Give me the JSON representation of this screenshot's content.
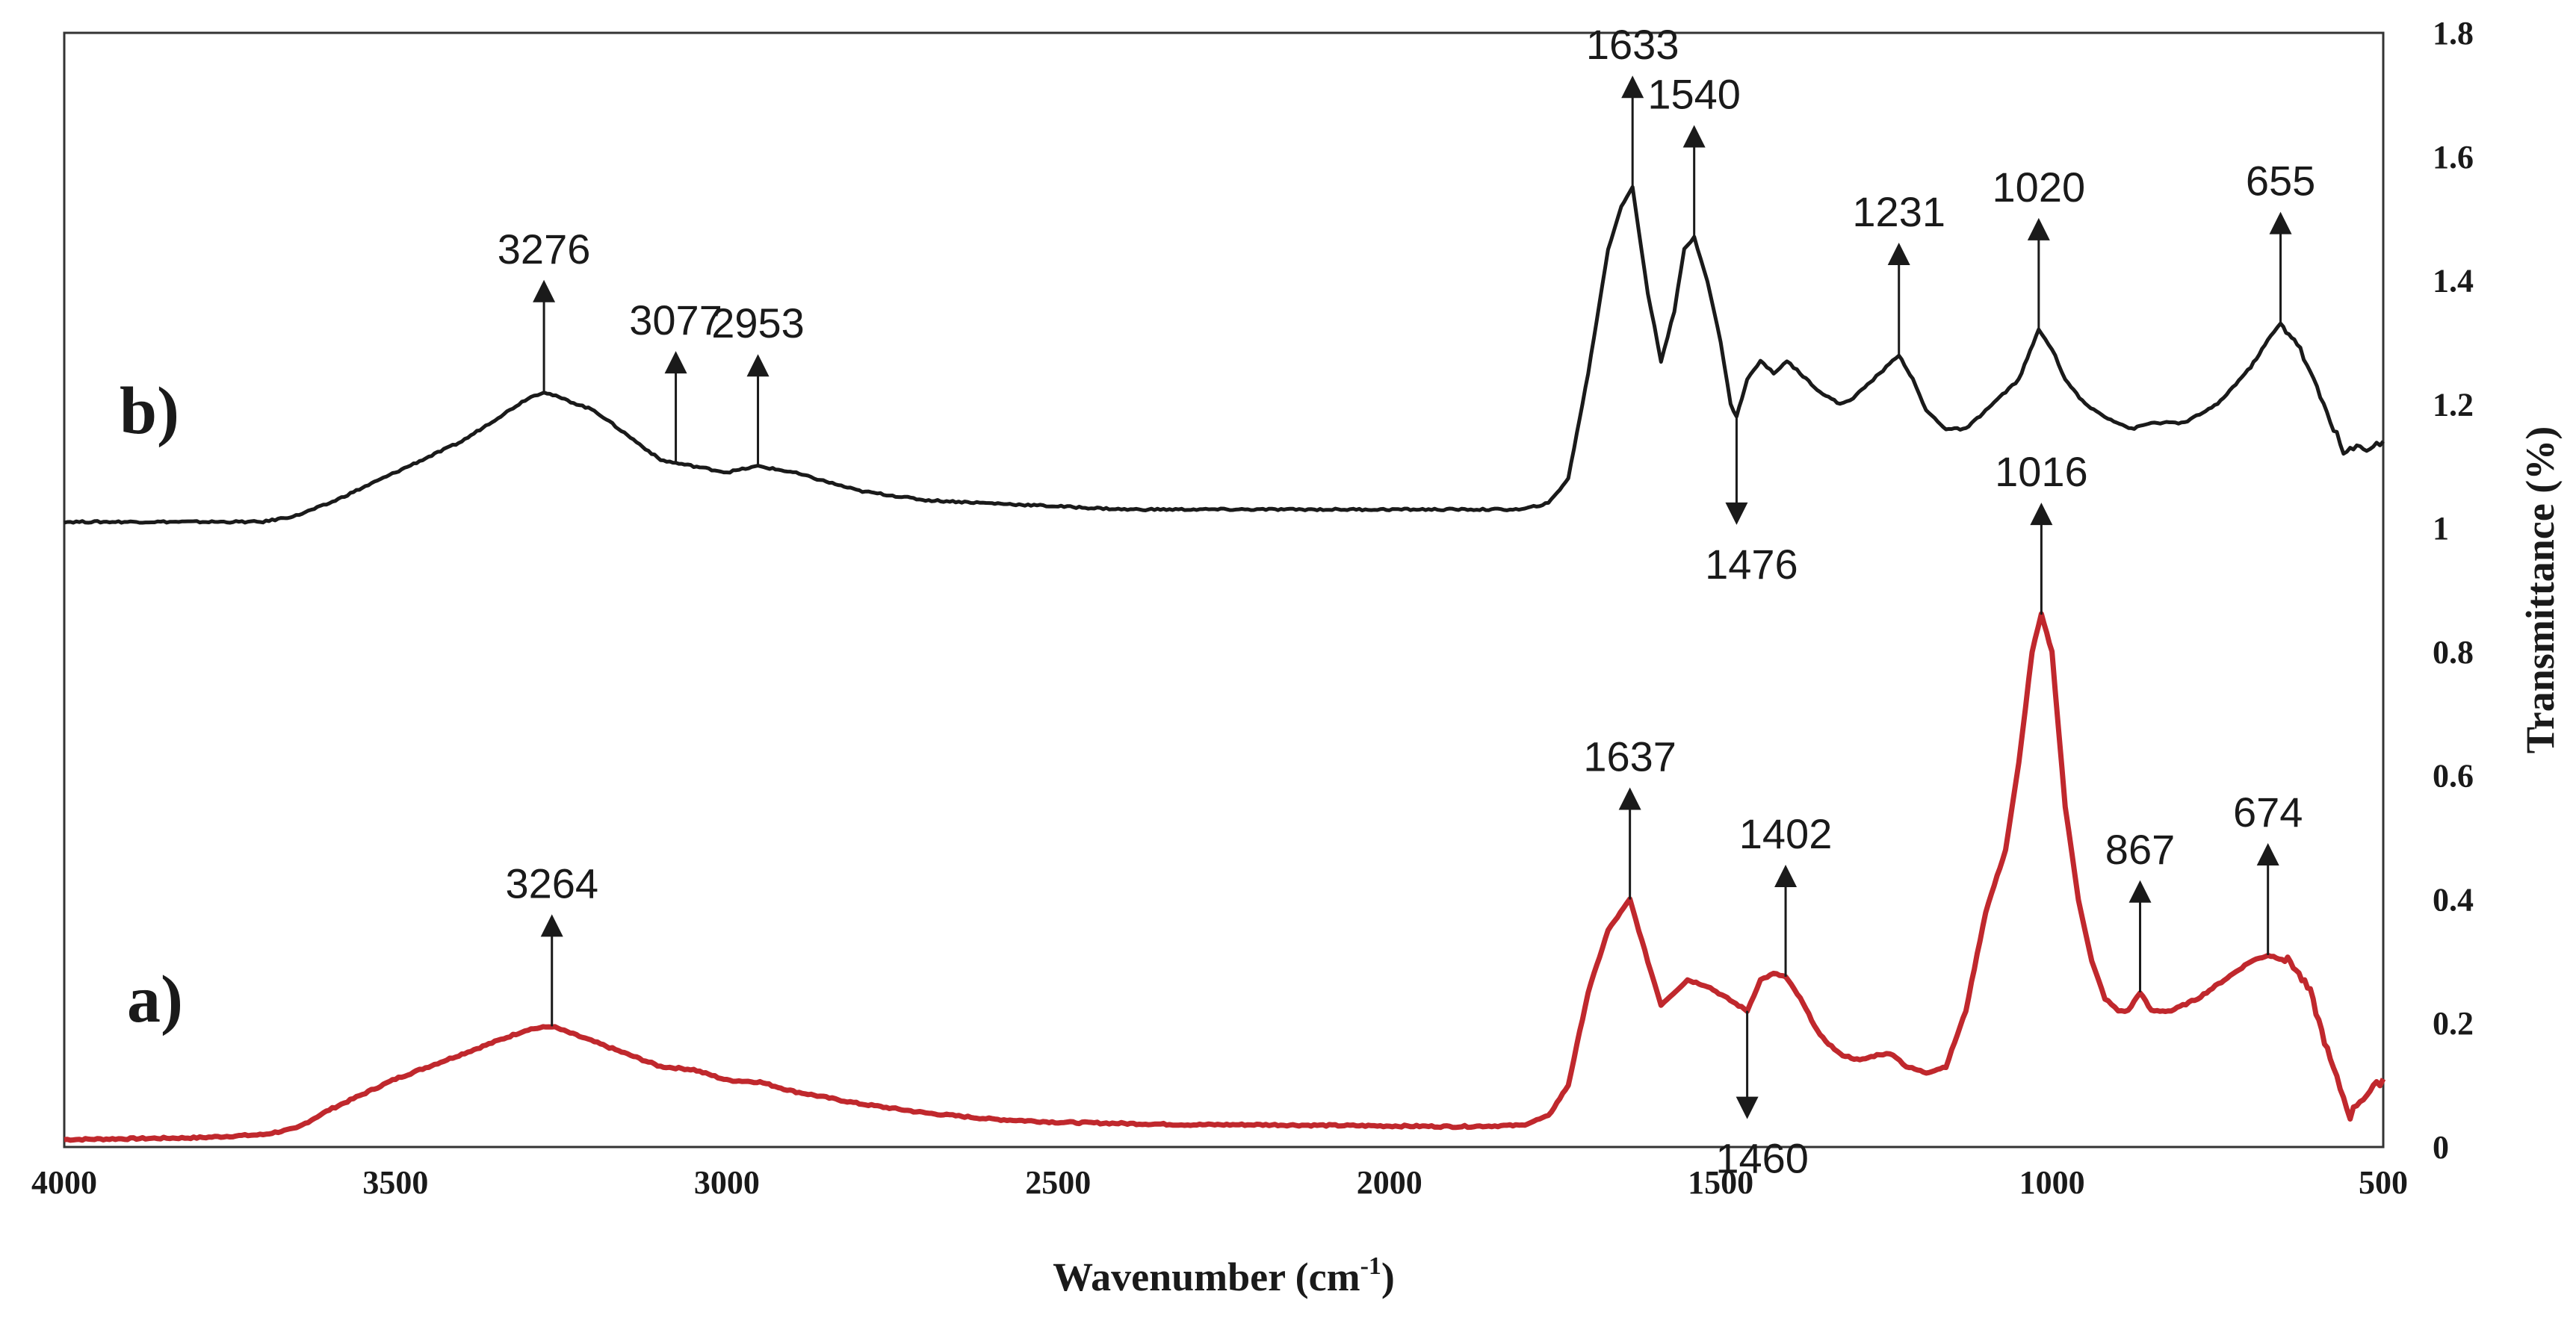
{
  "chart_data": {
    "type": "line",
    "title": "",
    "xlabel": "Wavenumber (cm",
    "xlabel_sup": "-1",
    "xlabel_close": ")",
    "ylabel": "Transmittance (%)",
    "xlim": [
      4000,
      500
    ],
    "ylim": [
      0,
      1.8
    ],
    "xticks": [
      4000,
      3500,
      3000,
      2500,
      2000,
      1500,
      1000,
      500
    ],
    "yticks": [
      "0",
      "0.2",
      "0.4",
      "0.6",
      "0.8",
      "1",
      "1.2",
      "1.4",
      "1.6",
      "1.8"
    ],
    "grid": false,
    "colors": {
      "a": "#c0282d",
      "b": "#1a1a1a"
    },
    "series": [
      {
        "label": "a)",
        "color": "#c0282d",
        "points": [
          [
            4000,
            0.012
          ],
          [
            3800,
            0.015
          ],
          [
            3700,
            0.02
          ],
          [
            3650,
            0.03
          ],
          [
            3600,
            0.06
          ],
          [
            3500,
            0.11
          ],
          [
            3400,
            0.15
          ],
          [
            3300,
            0.19
          ],
          [
            3264,
            0.195
          ],
          [
            3200,
            0.17
          ],
          [
            3100,
            0.13
          ],
          [
            3050,
            0.125
          ],
          [
            3000,
            0.108
          ],
          [
            2950,
            0.105
          ],
          [
            2900,
            0.09
          ],
          [
            2800,
            0.07
          ],
          [
            2700,
            0.055
          ],
          [
            2600,
            0.045
          ],
          [
            2500,
            0.04
          ],
          [
            2400,
            0.038
          ],
          [
            2300,
            0.036
          ],
          [
            2200,
            0.036
          ],
          [
            2100,
            0.035
          ],
          [
            2000,
            0.034
          ],
          [
            1900,
            0.033
          ],
          [
            1800,
            0.035
          ],
          [
            1760,
            0.05
          ],
          [
            1730,
            0.1
          ],
          [
            1700,
            0.25
          ],
          [
            1670,
            0.35
          ],
          [
            1637,
            0.4
          ],
          [
            1610,
            0.3
          ],
          [
            1590,
            0.23
          ],
          [
            1570,
            0.25
          ],
          [
            1550,
            0.27
          ],
          [
            1520,
            0.26
          ],
          [
            1490,
            0.24
          ],
          [
            1460,
            0.22
          ],
          [
            1440,
            0.27
          ],
          [
            1420,
            0.28
          ],
          [
            1402,
            0.275
          ],
          [
            1380,
            0.24
          ],
          [
            1350,
            0.18
          ],
          [
            1320,
            0.15
          ],
          [
            1290,
            0.14
          ],
          [
            1260,
            0.15
          ],
          [
            1240,
            0.15
          ],
          [
            1220,
            0.13
          ],
          [
            1190,
            0.12
          ],
          [
            1160,
            0.13
          ],
          [
            1130,
            0.22
          ],
          [
            1100,
            0.38
          ],
          [
            1070,
            0.48
          ],
          [
            1050,
            0.62
          ],
          [
            1030,
            0.8
          ],
          [
            1016,
            0.86
          ],
          [
            1000,
            0.8
          ],
          [
            980,
            0.55
          ],
          [
            960,
            0.4
          ],
          [
            940,
            0.3
          ],
          [
            920,
            0.24
          ],
          [
            900,
            0.22
          ],
          [
            885,
            0.22
          ],
          [
            867,
            0.25
          ],
          [
            850,
            0.22
          ],
          [
            820,
            0.22
          ],
          [
            780,
            0.24
          ],
          [
            740,
            0.27
          ],
          [
            700,
            0.3
          ],
          [
            674,
            0.31
          ],
          [
            640,
            0.3
          ],
          [
            610,
            0.25
          ],
          [
            580,
            0.14
          ],
          [
            560,
            0.08
          ],
          [
            550,
            0.05
          ],
          [
            540,
            0.07
          ],
          [
            520,
            0.09
          ],
          [
            500,
            0.11
          ]
        ]
      },
      {
        "label": "b)",
        "color": "#1a1a1a",
        "points": [
          [
            4000,
            1.01
          ],
          [
            3800,
            1.01
          ],
          [
            3700,
            1.01
          ],
          [
            3650,
            1.02
          ],
          [
            3600,
            1.04
          ],
          [
            3500,
            1.09
          ],
          [
            3400,
            1.14
          ],
          [
            3300,
            1.21
          ],
          [
            3276,
            1.22
          ],
          [
            3200,
            1.19
          ],
          [
            3100,
            1.11
          ],
          [
            3077,
            1.105
          ],
          [
            3050,
            1.1
          ],
          [
            3000,
            1.09
          ],
          [
            2953,
            1.1
          ],
          [
            2900,
            1.09
          ],
          [
            2800,
            1.06
          ],
          [
            2700,
            1.045
          ],
          [
            2600,
            1.04
          ],
          [
            2500,
            1.035
          ],
          [
            2400,
            1.03
          ],
          [
            2300,
            1.03
          ],
          [
            2200,
            1.03
          ],
          [
            2100,
            1.03
          ],
          [
            2000,
            1.03
          ],
          [
            1900,
            1.03
          ],
          [
            1800,
            1.03
          ],
          [
            1760,
            1.04
          ],
          [
            1730,
            1.08
          ],
          [
            1700,
            1.25
          ],
          [
            1670,
            1.45
          ],
          [
            1650,
            1.52
          ],
          [
            1633,
            1.55
          ],
          [
            1610,
            1.38
          ],
          [
            1590,
            1.27
          ],
          [
            1570,
            1.35
          ],
          [
            1555,
            1.45
          ],
          [
            1540,
            1.47
          ],
          [
            1520,
            1.4
          ],
          [
            1500,
            1.3
          ],
          [
            1485,
            1.2
          ],
          [
            1476,
            1.18
          ],
          [
            1460,
            1.24
          ],
          [
            1440,
            1.27
          ],
          [
            1420,
            1.25
          ],
          [
            1400,
            1.27
          ],
          [
            1380,
            1.25
          ],
          [
            1350,
            1.22
          ],
          [
            1320,
            1.2
          ],
          [
            1300,
            1.21
          ],
          [
            1270,
            1.24
          ],
          [
            1250,
            1.26
          ],
          [
            1231,
            1.28
          ],
          [
            1210,
            1.24
          ],
          [
            1190,
            1.19
          ],
          [
            1160,
            1.16
          ],
          [
            1130,
            1.16
          ],
          [
            1100,
            1.19
          ],
          [
            1070,
            1.22
          ],
          [
            1050,
            1.24
          ],
          [
            1020,
            1.32
          ],
          [
            1000,
            1.29
          ],
          [
            980,
            1.24
          ],
          [
            950,
            1.2
          ],
          [
            920,
            1.18
          ],
          [
            880,
            1.16
          ],
          [
            850,
            1.17
          ],
          [
            800,
            1.17
          ],
          [
            750,
            1.2
          ],
          [
            700,
            1.26
          ],
          [
            670,
            1.31
          ],
          [
            655,
            1.33
          ],
          [
            630,
            1.3
          ],
          [
            610,
            1.25
          ],
          [
            590,
            1.2
          ],
          [
            570,
            1.15
          ],
          [
            560,
            1.12
          ],
          [
            540,
            1.13
          ],
          [
            520,
            1.13
          ],
          [
            500,
            1.14
          ]
        ]
      }
    ],
    "annotations": [
      {
        "label": "3276",
        "series": "b)",
        "wn": 3276,
        "dir": "up"
      },
      {
        "label": "3077",
        "series": "b)",
        "wn": 3077,
        "dir": "up"
      },
      {
        "label": "2953",
        "series": "b)",
        "wn": 2953,
        "dir": "up"
      },
      {
        "label": "1633",
        "series": "b)",
        "wn": 1633,
        "dir": "up"
      },
      {
        "label": "1540",
        "series": "b)",
        "wn": 1540,
        "dir": "up"
      },
      {
        "label": "1231",
        "series": "b)",
        "wn": 1231,
        "dir": "up"
      },
      {
        "label": "1020",
        "series": "b)",
        "wn": 1020,
        "dir": "up"
      },
      {
        "label": "655",
        "series": "b)",
        "wn": 655,
        "dir": "up"
      },
      {
        "label": "1476",
        "series": "b)",
        "wn": 1476,
        "dir": "down"
      },
      {
        "label": "3264",
        "series": "a)",
        "wn": 3264,
        "dir": "up"
      },
      {
        "label": "1637",
        "series": "a)",
        "wn": 1637,
        "dir": "up"
      },
      {
        "label": "1402",
        "series": "a)",
        "wn": 1402,
        "dir": "up"
      },
      {
        "label": "1016",
        "series": "a)",
        "wn": 1016,
        "dir": "up"
      },
      {
        "label": "867",
        "series": "a)",
        "wn": 867,
        "dir": "up"
      },
      {
        "label": "674",
        "series": "a)",
        "wn": 674,
        "dir": "up"
      },
      {
        "label": "1460",
        "series": "a)",
        "wn": 1460,
        "dir": "down"
      }
    ]
  }
}
